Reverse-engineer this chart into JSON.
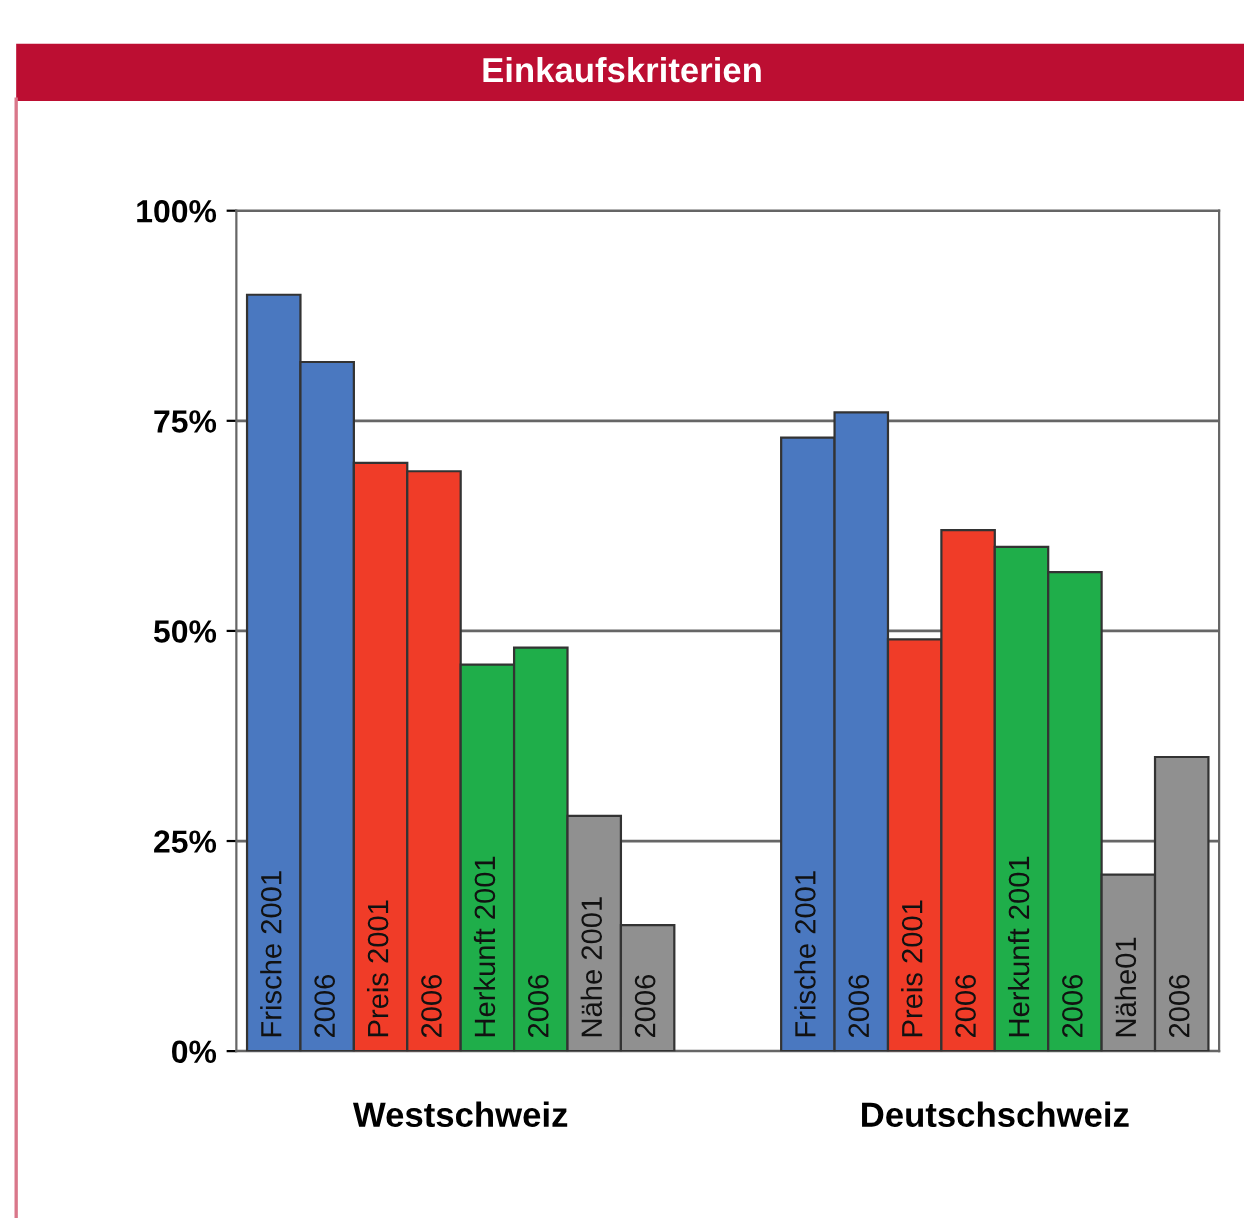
{
  "chart_data": {
    "type": "bar",
    "title": "Einkaufskriterien",
    "categories": [
      "Frische 2001",
      "2006",
      "Preis 2001",
      "2006",
      "Herkunft 2001",
      "2006",
      "Nähe 2001",
      "2006",
      null,
      null,
      "Frische 2001",
      "2006",
      "Preis 2001",
      "2006",
      "Herkunft 2001",
      "2006",
      "Nähe01",
      "2006"
    ],
    "values": [
      90,
      82,
      70,
      69,
      46,
      48,
      28,
      15,
      null,
      null,
      73,
      76,
      49,
      62,
      60,
      57,
      21,
      35
    ],
    "colors": [
      "#4a78c0",
      "#4a78c0",
      "#f03c28",
      "#f03c28",
      "#1fae4a",
      "#1fae4a",
      "#909090",
      "#909090",
      "#ffffff",
      "#ffffff",
      "#4a78c0",
      "#4a78c0",
      "#f03c28",
      "#f03c28",
      "#1fae4a",
      "#1fae4a",
      "#909090",
      "#909090"
    ],
    "ylim": [
      0,
      100
    ],
    "yticks": [
      {
        "value": 0,
        "label": "0%"
      },
      {
        "value": 25,
        "label": "25%"
      },
      {
        "value": 50,
        "label": "50%"
      },
      {
        "value": 75,
        "label": "75%"
      },
      {
        "value": 100,
        "label": "100%"
      }
    ],
    "grid": "y",
    "annotations": [
      "Westschweiz",
      "Deutschschweiz"
    ]
  }
}
